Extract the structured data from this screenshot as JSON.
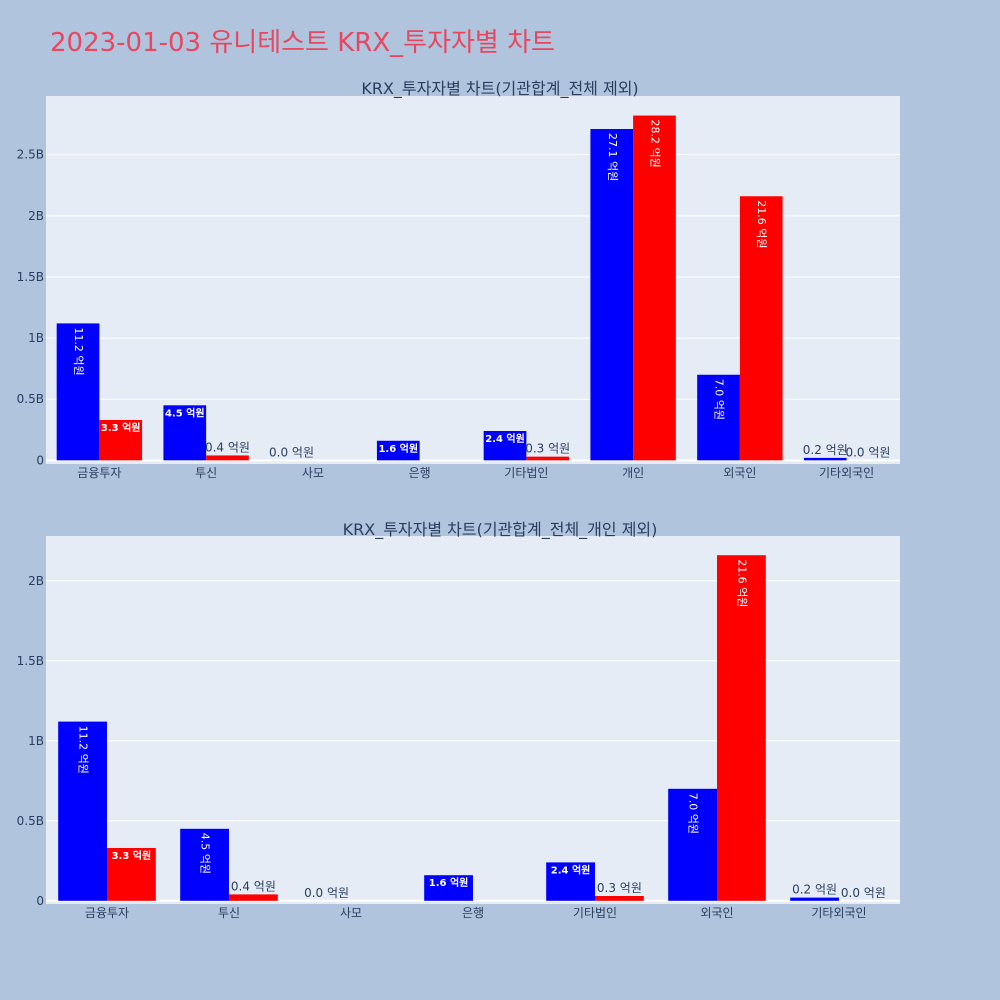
{
  "page": {
    "title": "2023-01-03 유니테스트 KRX_투자자별 차트"
  },
  "chart_data": [
    {
      "type": "bar",
      "title": "KRX_투자자별 차트(기관합계_전체 제외)",
      "categories": [
        "금융투자",
        "투신",
        "사모",
        "은행",
        "기타법인",
        "개인",
        "외국인",
        "기타외국인"
      ],
      "series": [
        {
          "color": "#0000ff",
          "values": [
            1120000000,
            450000000,
            0,
            160000000,
            240000000,
            2710000000,
            700000000,
            20000000
          ],
          "labels": [
            "11.2 억원",
            "4.5 억원",
            "0.0 억원",
            "1.6 억원",
            "2.4 억원",
            "27.1 억원",
            "7.0 억원",
            "0.2 억원"
          ]
        },
        {
          "color": "#ff0000",
          "values": [
            330000000,
            40000000,
            0,
            0,
            30000000,
            2820000000,
            2160000000,
            0
          ],
          "labels": [
            "3.3 억원",
            "0.4 억원",
            "",
            "",
            "0.3 억원",
            "28.2 억원",
            "21.6 억원",
            "0.0 억원"
          ]
        }
      ],
      "yticks": [
        {
          "value": 0,
          "label": "0"
        },
        {
          "value": 500000000,
          "label": "0.5B"
        },
        {
          "value": 1000000000,
          "label": "1B"
        },
        {
          "value": 1500000000,
          "label": "1.5B"
        },
        {
          "value": 2000000000,
          "label": "2B"
        },
        {
          "value": 2500000000,
          "label": "2.5B"
        }
      ],
      "ylim": [
        -30000000,
        2980000000
      ],
      "grid": true
    },
    {
      "type": "bar",
      "title": "KRX_투자자별 차트(기관합계_전체_개인 제외)",
      "categories": [
        "금융투자",
        "투신",
        "사모",
        "은행",
        "기타법인",
        "외국인",
        "기타외국인"
      ],
      "series": [
        {
          "color": "#0000ff",
          "values": [
            1120000000,
            450000000,
            0,
            160000000,
            240000000,
            700000000,
            20000000
          ],
          "labels": [
            "11.2 억원",
            "4.5 억원",
            "0.0 억원",
            "1.6 억원",
            "2.4 억원",
            "7.0 억원",
            "0.2 억원"
          ]
        },
        {
          "color": "#ff0000",
          "values": [
            330000000,
            40000000,
            0,
            0,
            30000000,
            2160000000,
            0
          ],
          "labels": [
            "3.3 억원",
            "0.4 억원",
            "",
            "",
            "0.3 억원",
            "21.6 억원",
            "0.0 억원"
          ]
        }
      ],
      "yticks": [
        {
          "value": 0,
          "label": "0"
        },
        {
          "value": 500000000,
          "label": "0.5B"
        },
        {
          "value": 1000000000,
          "label": "1B"
        },
        {
          "value": 1500000000,
          "label": "1.5B"
        },
        {
          "value": 2000000000,
          "label": "2B"
        }
      ],
      "ylim": [
        -20000000,
        2280000000
      ],
      "grid": true
    }
  ]
}
